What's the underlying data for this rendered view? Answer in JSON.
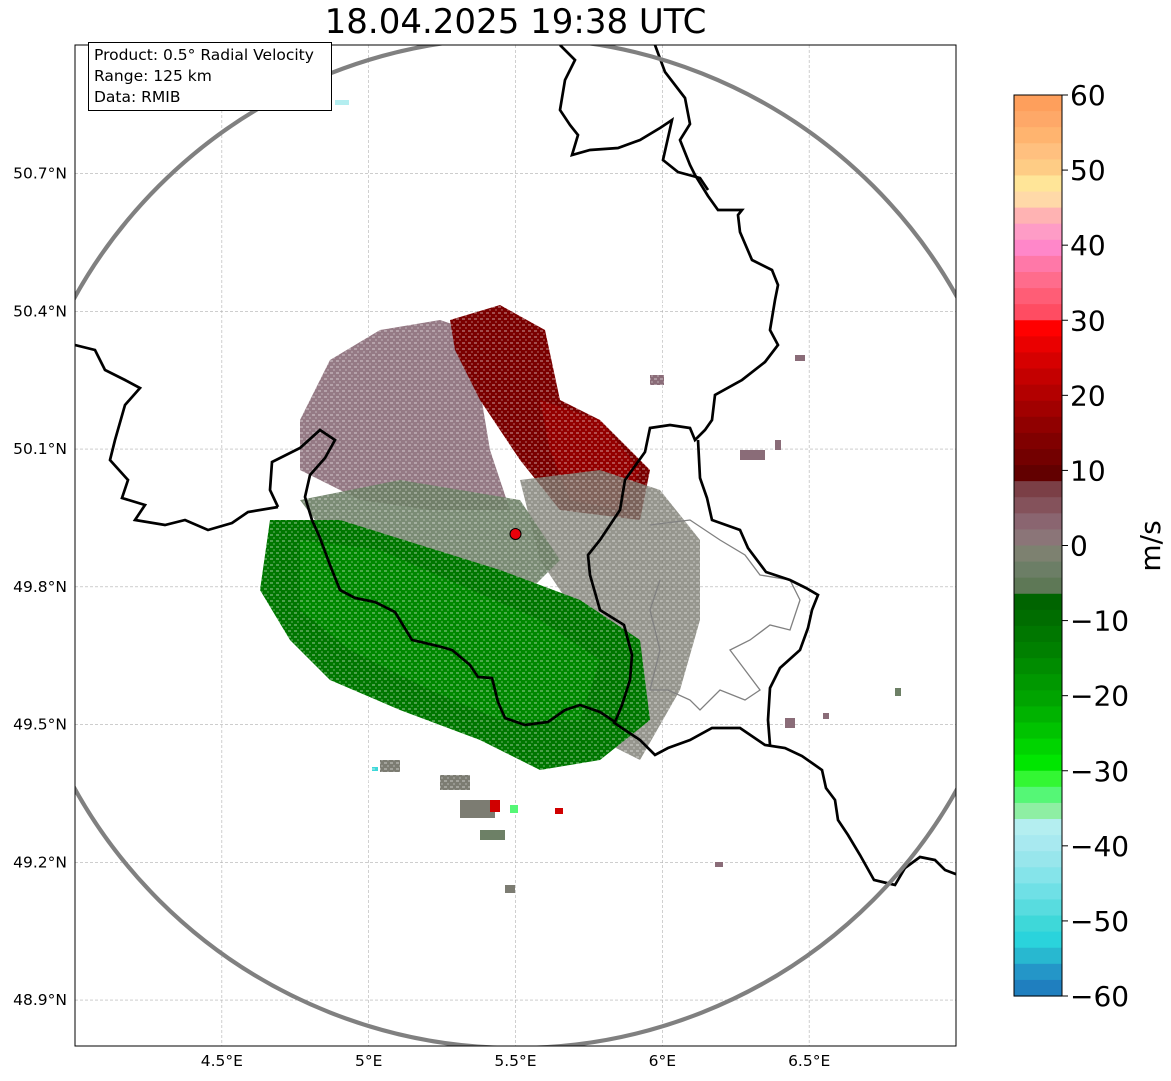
{
  "title": "18.04.2025 19:38 UTC",
  "info": {
    "product": "Product: 0.5° Radial Velocity",
    "range": "Range: 125 km",
    "data": "Data: RMIB"
  },
  "map": {
    "lon_range": [
      4.0,
      7.0
    ],
    "lat_range": [
      48.8,
      50.98
    ],
    "x_ticks": [
      4.5,
      5.0,
      5.5,
      6.0,
      6.5
    ],
    "x_tick_labels": [
      "4.5°E",
      "5°E",
      "5.5°E",
      "6°E",
      "6.5°E"
    ],
    "y_ticks": [
      48.9,
      49.2,
      49.5,
      49.8,
      50.1,
      50.4,
      50.7
    ],
    "y_tick_labels": [
      "48.9°N",
      "49.2°N",
      "49.5°N",
      "49.8°N",
      "50.1°N",
      "50.4°N",
      "50.7°N"
    ],
    "gridlines": true,
    "radar_site": {
      "lon": 5.5,
      "lat": 49.915
    },
    "range_ring_km": 125,
    "ring_color": "#808080",
    "site_color": "#e8000b"
  },
  "colorbar": {
    "label": "m/s",
    "range": [
      -60,
      60
    ],
    "ticks": [
      60,
      50,
      40,
      30,
      20,
      10,
      0,
      -10,
      -20,
      -30,
      -40,
      -50,
      -60
    ],
    "tick_labels": [
      "60",
      "50",
      "40",
      "30",
      "20",
      "10",
      "0",
      "−10",
      "−20",
      "−30",
      "−40",
      "−50",
      "−60"
    ],
    "colors_top_to_bottom": [
      "#fe9f5c",
      "#fea868",
      "#ffb46f",
      "#ffc07f",
      "#fecc85",
      "#ffe598",
      "#ffd9a8",
      "#ffb3b3",
      "#fe9cc6",
      "#ff87c9",
      "#ff78a8",
      "#ff6c8c",
      "#ff5d76",
      "#ff4c62",
      "#ff0000",
      "#ea0000",
      "#d60000",
      "#c40000",
      "#b30000",
      "#a10000",
      "#900000",
      "#800000",
      "#730000",
      "#620000",
      "#7b3f46",
      "#84525b",
      "#8a6570",
      "#8b7578",
      "#7d8170",
      "#6c7e66",
      "#5e7856",
      "#006400",
      "#006d00",
      "#007700",
      "#008000",
      "#008c00",
      "#009800",
      "#00a400",
      "#00b300",
      "#00c300",
      "#00d400",
      "#00e600",
      "#33f733",
      "#55f776",
      "#8eefa3",
      "#b4eef0",
      "#a8e9f0",
      "#98e6ec",
      "#85e4ea",
      "#6fe0e6",
      "#58dcdf",
      "#3ed8d9",
      "#2ad3dc",
      "#28b8d0",
      "#2496c8",
      "#1f7fbf"
    ]
  }
}
